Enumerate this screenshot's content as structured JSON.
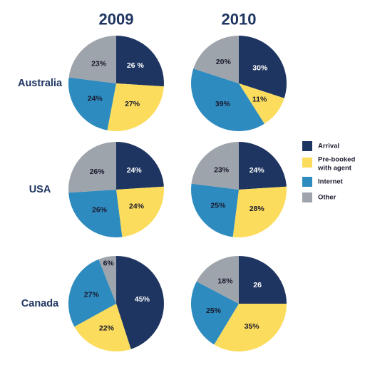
{
  "colors": {
    "heading": "#1f3561",
    "label": "#1a1a2e",
    "arrival": "#1f3561",
    "prebooked": "#fbdc5c",
    "internet": "#2e8bbf",
    "other": "#9ea4ab"
  },
  "chart_data": {
    "type": "pie",
    "years": [
      "2009",
      "2010"
    ],
    "legend": [
      {
        "key": "arrival",
        "lines": [
          "Arrival"
        ]
      },
      {
        "key": "prebooked",
        "lines": [
          "Pre-booked",
          "with agent"
        ]
      },
      {
        "key": "internet",
        "lines": [
          "Internet"
        ]
      },
      {
        "key": "other",
        "lines": [
          "Other"
        ]
      }
    ],
    "rows": [
      {
        "country": "Australia",
        "pies": [
          {
            "year": "2009",
            "slices": [
              {
                "key": "arrival",
                "value": 26,
                "label": "26 %"
              },
              {
                "key": "prebooked",
                "value": 27,
                "label": "27%"
              },
              {
                "key": "internet",
                "value": 24,
                "label": "24%"
              },
              {
                "key": "other",
                "value": 23,
                "label": "23%"
              }
            ]
          },
          {
            "year": "2010",
            "slices": [
              {
                "key": "arrival",
                "value": 30,
                "label": "30%"
              },
              {
                "key": "prebooked",
                "value": 11,
                "label": "11%"
              },
              {
                "key": "internet",
                "value": 39,
                "label": "39%"
              },
              {
                "key": "other",
                "value": 20,
                "label": "20%"
              }
            ]
          }
        ]
      },
      {
        "country": "USA",
        "pies": [
          {
            "year": "2009",
            "slices": [
              {
                "key": "arrival",
                "value": 24,
                "label": "24%"
              },
              {
                "key": "prebooked",
                "value": 24,
                "label": "24%"
              },
              {
                "key": "internet",
                "value": 26,
                "label": "26%"
              },
              {
                "key": "other",
                "value": 26,
                "label": "26%"
              }
            ]
          },
          {
            "year": "2010",
            "slices": [
              {
                "key": "arrival",
                "value": 24,
                "label": "24%"
              },
              {
                "key": "prebooked",
                "value": 28,
                "label": "28%"
              },
              {
                "key": "internet",
                "value": 25,
                "label": "25%"
              },
              {
                "key": "other",
                "value": 23,
                "label": "23%"
              }
            ]
          }
        ]
      },
      {
        "country": "Canada",
        "pies": [
          {
            "year": "2009",
            "slices": [
              {
                "key": "arrival",
                "value": 45,
                "label": "45%"
              },
              {
                "key": "prebooked",
                "value": 22,
                "label": "22%"
              },
              {
                "key": "internet",
                "value": 27,
                "label": "27%"
              },
              {
                "key": "other",
                "value": 6,
                "label": "6%"
              }
            ]
          },
          {
            "year": "2010",
            "slices": [
              {
                "key": "arrival",
                "value": 26,
                "label": "26"
              },
              {
                "key": "prebooked",
                "value": 35,
                "label": "35%"
              },
              {
                "key": "internet",
                "value": 25,
                "label": "25%"
              },
              {
                "key": "other",
                "value": 18,
                "label": "18%"
              }
            ]
          }
        ]
      }
    ]
  }
}
